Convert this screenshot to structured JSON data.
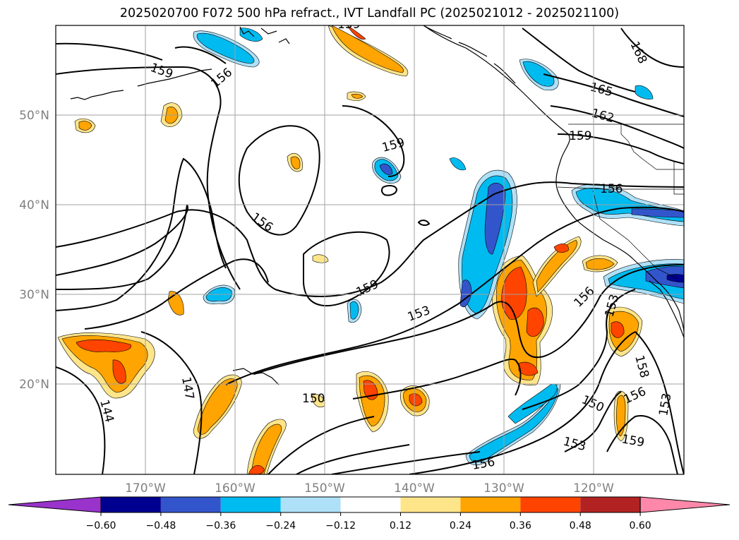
{
  "title": "2025020700 F072 500 hPa refract., IVT Landfall PC (2025021012 - 2025021100)",
  "map": {
    "lat_labels": [
      {
        "text": "50°N",
        "lat": 50
      },
      {
        "text": "40°N",
        "lat": 40
      },
      {
        "text": "30°N",
        "lat": 30
      },
      {
        "text": "20°N",
        "lat": 20
      }
    ],
    "lon_labels": [
      {
        "text": "170°W",
        "lon": -170
      },
      {
        "text": "160°W",
        "lon": -160
      },
      {
        "text": "150°W",
        "lon": -150
      },
      {
        "text": "140°W",
        "lon": -140
      },
      {
        "text": "130°W",
        "lon": -130
      },
      {
        "text": "120°W",
        "lon": -120
      }
    ],
    "contour_labels": [
      "159",
      "156",
      "165",
      "168",
      "162",
      "159",
      "159",
      "156",
      "156",
      "159",
      "153",
      "156",
      "153",
      "159",
      "153",
      "158",
      "150",
      "156",
      "153",
      "159",
      "150",
      "147",
      "144",
      "156"
    ]
  },
  "colorbar": {
    "colors": [
      "#9933cc",
      "#000090",
      "#3355cc",
      "#00bbf0",
      "#aee0f8",
      "#ffffff",
      "#ffe58a",
      "#ffa400",
      "#ff4400",
      "#b22222",
      "#ff88aa"
    ],
    "labels": [
      "−0.60",
      "−0.48",
      "−0.36",
      "−0.24",
      "−0.12",
      "0.12",
      "0.24",
      "0.36",
      "0.48",
      "0.60"
    ]
  }
}
